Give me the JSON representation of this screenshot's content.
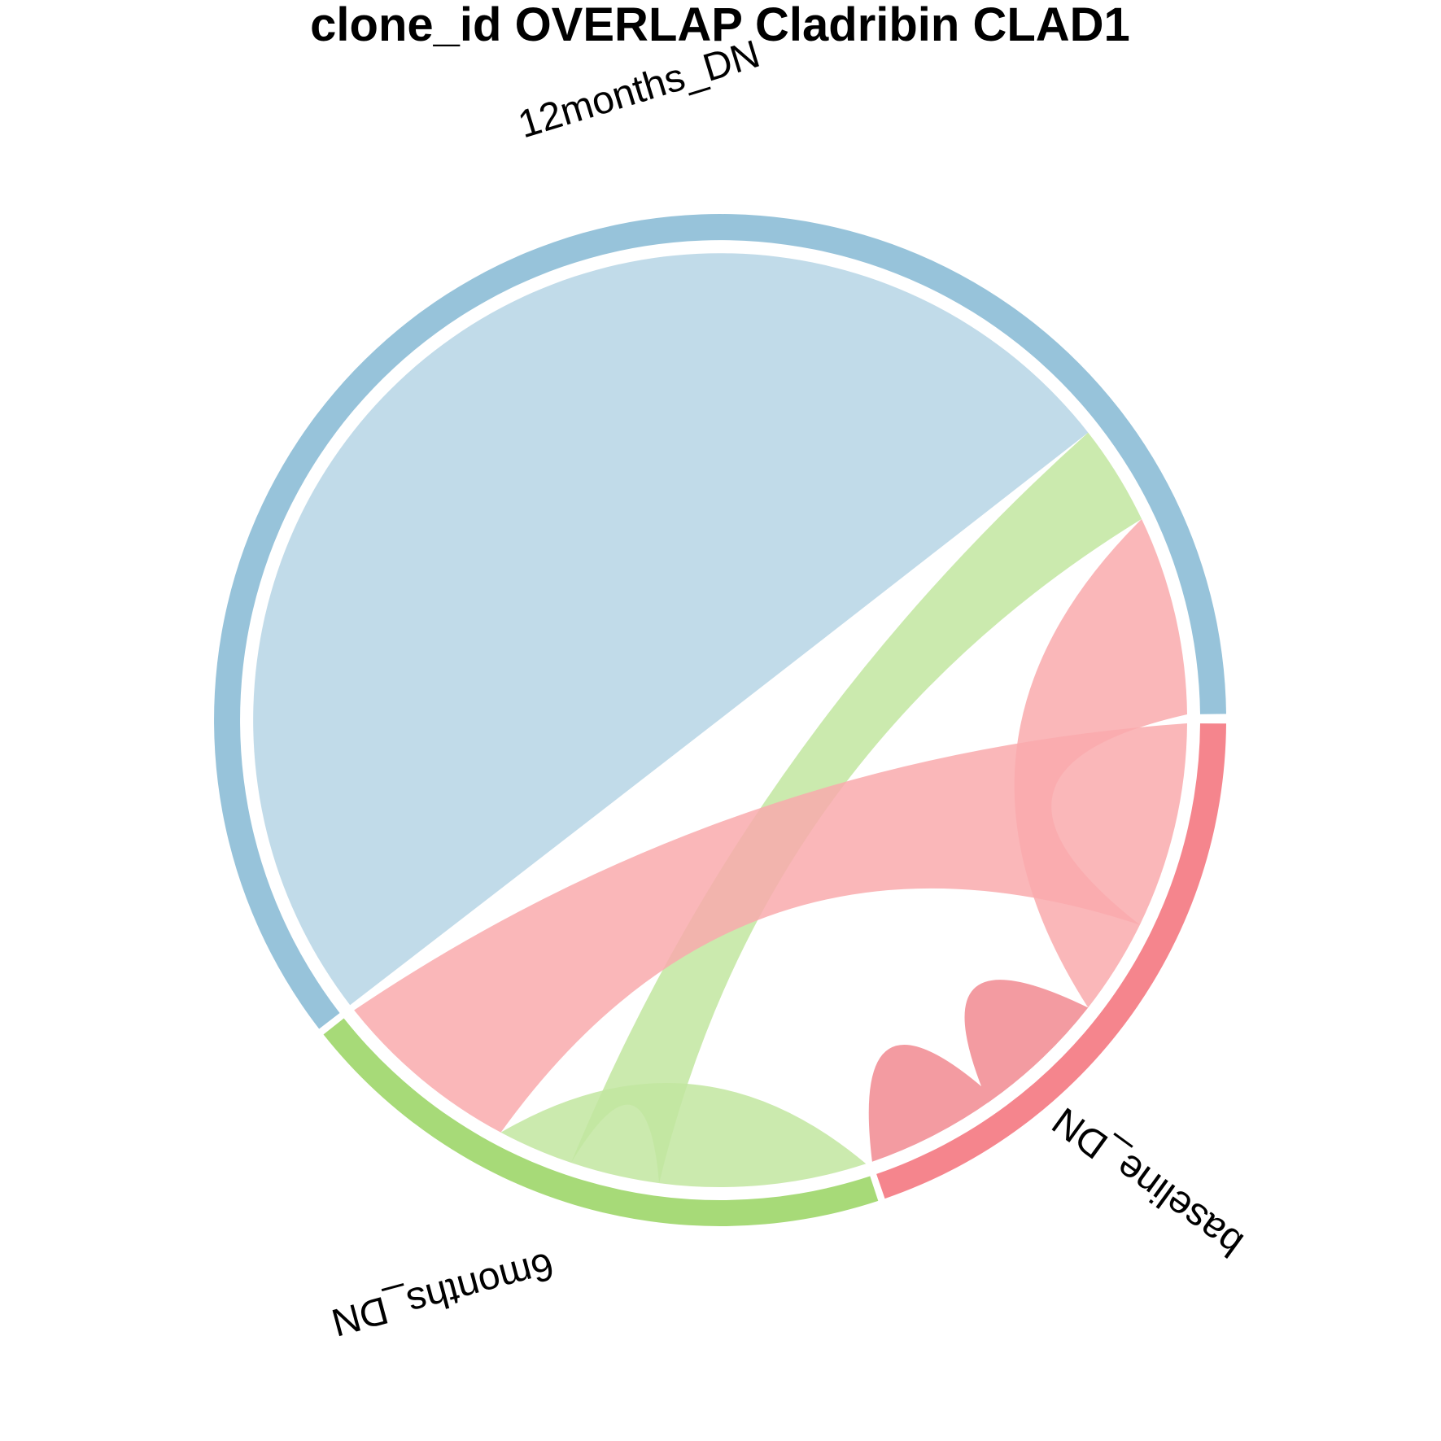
{
  "title": "clone_id OVERLAP Cladribin CLAD1",
  "chart_data": {
    "type": "chord",
    "sectors": [
      {
        "name": "12months_DN",
        "color": "#97C3DA"
      },
      {
        "name": "baseline_DN",
        "color": "#F5858D"
      },
      {
        "name": "6months_DN",
        "color": "#A7DA78"
      }
    ],
    "links": [
      {
        "from": "12months_DN",
        "to": "12months_DN",
        "color": "#B6D5E5"
      },
      {
        "from": "12months_DN",
        "to": "6months_DN",
        "color": "#C2E6A0"
      },
      {
        "from": "12months_DN",
        "to": "baseline_DN",
        "color": "#F9AAAD"
      },
      {
        "from": "baseline_DN",
        "to": "6months_DN",
        "color": "#F9AAAD"
      },
      {
        "from": "6months_DN",
        "to": "6months_DN",
        "color": "#C2E6A0"
      },
      {
        "from": "baseline_DN",
        "to": "baseline_DN",
        "color": "#F18A90"
      }
    ]
  }
}
